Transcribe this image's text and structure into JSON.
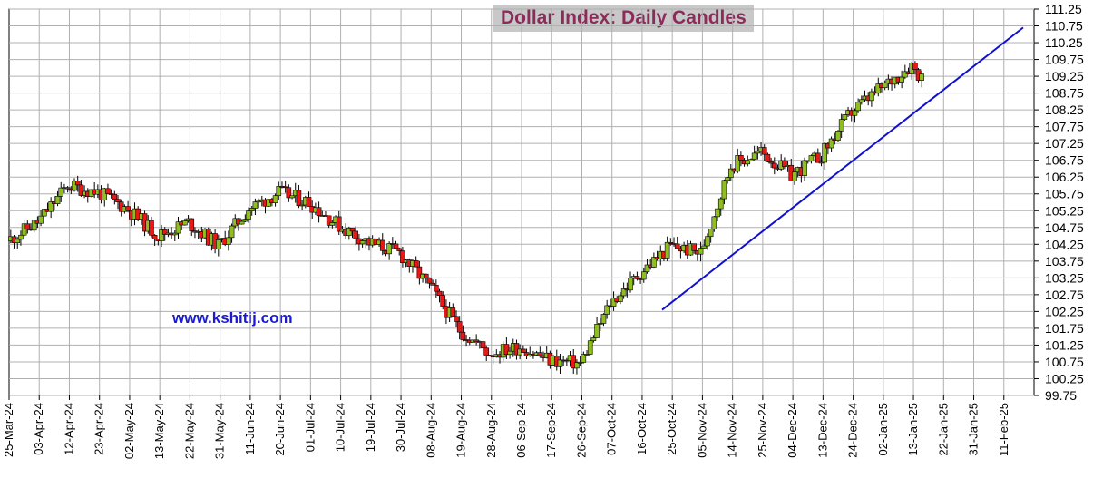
{
  "chart_data": {
    "type": "candlestick",
    "title": "Dollar Index:  Daily Candles",
    "annotation": "www.kshitij.com",
    "ylim": [
      99.75,
      111.25
    ],
    "y_ticks": [
      111.25,
      110.75,
      110.25,
      109.75,
      109.25,
      108.75,
      108.25,
      107.75,
      107.25,
      106.75,
      106.25,
      105.75,
      105.25,
      104.75,
      104.25,
      103.75,
      103.25,
      102.75,
      102.25,
      101.75,
      101.25,
      100.75,
      100.25,
      99.75
    ],
    "x_ticks": [
      "25-Mar-24",
      "03-Apr-24",
      "12-Apr-24",
      "23-Apr-24",
      "02-May-24",
      "13-May-24",
      "22-May-24",
      "31-May-24",
      "11-Jun-24",
      "20-Jun-24",
      "01-Jul-24",
      "10-Jul-24",
      "19-Jul-24",
      "30-Jul-24",
      "08-Aug-24",
      "19-Aug-24",
      "28-Aug-24",
      "06-Sep-24",
      "17-Sep-24",
      "26-Sep-24",
      "07-Oct-24",
      "16-Oct-24",
      "25-Oct-24",
      "05-Nov-24",
      "14-Nov-24",
      "25-Nov-24",
      "04-Dec-24",
      "13-Dec-24",
      "24-Dec-24",
      "02-Jan-25",
      "13-Jan-25",
      "22-Jan-25",
      "31-Jan-25",
      "11-Feb-25"
    ],
    "y_axis_position": "right",
    "grid": true,
    "up_color": "#8fbf1f",
    "down_color": "#e81818",
    "trendline_color": "#1010d0",
    "trendline": [
      {
        "x": 0,
        "y": 102.3
      },
      {
        "x": 1.0,
        "y": 110.7
      }
    ],
    "close_path": [
      {
        "x": "25-Mar-24",
        "y": 104.35
      },
      {
        "x": "03-Apr-24",
        "y": 104.9
      },
      {
        "x": "12-Apr-24",
        "y": 106.0
      },
      {
        "x": "23-Apr-24",
        "y": 105.8
      },
      {
        "x": "02-May-24",
        "y": 105.3
      },
      {
        "x": "13-May-24",
        "y": 104.5
      },
      {
        "x": "22-May-24",
        "y": 104.9
      },
      {
        "x": "31-May-24",
        "y": 104.2
      },
      {
        "x": "11-Jun-24",
        "y": 105.3
      },
      {
        "x": "20-Jun-24",
        "y": 105.8
      },
      {
        "x": "01-Jul-24",
        "y": 105.5
      },
      {
        "x": "10-Jul-24",
        "y": 104.8
      },
      {
        "x": "19-Jul-24",
        "y": 104.3
      },
      {
        "x": "30-Jul-24",
        "y": 104.0
      },
      {
        "x": "08-Aug-24",
        "y": 103.0
      },
      {
        "x": "19-Aug-24",
        "y": 101.7
      },
      {
        "x": "28-Aug-24",
        "y": 101.0
      },
      {
        "x": "06-Sep-24",
        "y": 101.2
      },
      {
        "x": "17-Sep-24",
        "y": 100.8
      },
      {
        "x": "26-Sep-24",
        "y": 100.7
      },
      {
        "x": "07-Oct-24",
        "y": 102.5
      },
      {
        "x": "16-Oct-24",
        "y": 103.4
      },
      {
        "x": "25-Oct-24",
        "y": 104.2
      },
      {
        "x": "05-Nov-24",
        "y": 104.0
      },
      {
        "x": "14-Nov-24",
        "y": 106.6
      },
      {
        "x": "25-Nov-24",
        "y": 107.0
      },
      {
        "x": "04-Dec-24",
        "y": 106.3
      },
      {
        "x": "13-Dec-24",
        "y": 106.9
      },
      {
        "x": "24-Dec-24",
        "y": 108.2
      },
      {
        "x": "02-Jan-25",
        "y": 108.9
      },
      {
        "x": "13-Jan-25",
        "y": 109.6
      },
      {
        "x": "16-Jan-25",
        "y": 109.2
      }
    ]
  }
}
